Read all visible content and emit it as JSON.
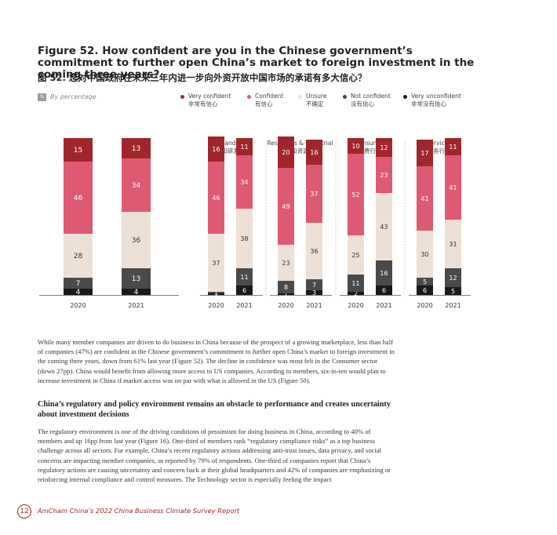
{
  "figure": {
    "title": "Figure 52. How confident are you in the Chinese government’s commitment to further open China’s market to foreign investment in the coming three years?",
    "title_zh": "图 52. 您对中国政府在未来三年内进一步向外资开放中国市场的承诺有多大信心？",
    "percentage_badge": "%",
    "percentage_note": "By percentage"
  },
  "legend": [
    {
      "label": "Very confident",
      "label_zh": "非常有信心",
      "color": "#a0262c"
    },
    {
      "label": "Confident",
      "label_zh": "有信心",
      "color": "#de5a73"
    },
    {
      "label": "Unsure",
      "label_zh": "不确定",
      "color": "#ede0d6"
    },
    {
      "label": "Not confident",
      "label_zh": "没有信心",
      "color": "#4a4a4a"
    },
    {
      "label": "Very unconfident",
      "label_zh": "非常没有信心",
      "color": "#1a1a1a"
    }
  ],
  "chart_data": [
    {
      "type": "bar",
      "stacked": true,
      "title": "",
      "categories": [
        "2020",
        "2021"
      ],
      "series": [
        {
          "name": "Very confident",
          "values": [
            15,
            13
          ]
        },
        {
          "name": "Confident",
          "values": [
            46,
            34
          ]
        },
        {
          "name": "Unsure",
          "values": [
            28,
            36
          ]
        },
        {
          "name": "Not confident",
          "values": [
            7,
            13
          ]
        },
        {
          "name": "Very unconfident",
          "values": [
            4,
            4
          ]
        }
      ]
    },
    {
      "type": "bar",
      "stacked": true,
      "title": "Tech and R&D",
      "title_zh": "技术和研发行业",
      "categories": [
        "2020",
        "2021"
      ],
      "series": [
        {
          "name": "Very confident",
          "values": [
            16,
            11
          ]
        },
        {
          "name": "Confident",
          "values": [
            46,
            34
          ]
        },
        {
          "name": "Unsure",
          "values": [
            37,
            38
          ]
        },
        {
          "name": "Not confident",
          "values": [
            1,
            11
          ]
        },
        {
          "name": "Very unconfident",
          "values": [
            1,
            6
          ]
        }
      ]
    },
    {
      "type": "bar",
      "stacked": true,
      "title": "Resources & Industrial",
      "title_zh": "工业和资源行业",
      "categories": [
        "2020",
        "2021"
      ],
      "series": [
        {
          "name": "Very confident",
          "values": [
            20,
            16
          ]
        },
        {
          "name": "Confident",
          "values": [
            49,
            37
          ]
        },
        {
          "name": "Unsure",
          "values": [
            23,
            36
          ]
        },
        {
          "name": "Not confident",
          "values": [
            8,
            7
          ]
        },
        {
          "name": "Very unconfident",
          "values": [
            1,
            3
          ]
        }
      ]
    },
    {
      "type": "bar",
      "stacked": true,
      "title": "Consumer",
      "title_zh": "消费行业",
      "categories": [
        "2020",
        "2021"
      ],
      "series": [
        {
          "name": "Very confident",
          "values": [
            10,
            12
          ]
        },
        {
          "name": "Confident",
          "values": [
            52,
            23
          ]
        },
        {
          "name": "Unsure",
          "values": [
            25,
            43
          ]
        },
        {
          "name": "Not confident",
          "values": [
            11,
            16
          ]
        },
        {
          "name": "Very unconfident",
          "values": [
            2,
            6
          ]
        }
      ]
    },
    {
      "type": "bar",
      "stacked": true,
      "title": "Services",
      "title_zh": "服务行业",
      "categories": [
        "2020",
        "2021"
      ],
      "series": [
        {
          "name": "Very confident",
          "values": [
            17,
            11
          ]
        },
        {
          "name": "Confident",
          "values": [
            41,
            41
          ]
        },
        {
          "name": "Unsure",
          "values": [
            30,
            31
          ]
        },
        {
          "name": "Not confident",
          "values": [
            5,
            12
          ]
        },
        {
          "name": "Very unconfident",
          "values": [
            6,
            5
          ]
        }
      ]
    }
  ],
  "text": {
    "paragraph1": "While many member companies are driven to do business in China because of the prospect of a growing marketplace, less than half of companies (47%) are confident in the Chinese government’s commitment to further open China’s market to foreign investment in the coming three years, down from 61% last year (Figure 52). The decline in confidence was most felt in the Consumer sector (down 27pp). China would benefit from allowing more access to US companies. According to members, six-in-ten would plan to increase investment in China if market access was on par with what is allowed in the US (Figure 50).",
    "heading": "China’s regulatory and policy environment remains an obstacle to performance and creates uncertainty about investment decisions",
    "paragraph2": "The regulatory environment is one of the driving conditions of pessimism for doing business in China, according to 40% of members and up 16pp from last year (Figure 16). One-third of members rank “regulatory compliance risks” as a top business challenge across all sectors. For example, China’s recent regulatory actions addressing anti-trust issues, data privacy, and social concerns are impacting member companies, as reported by 79% of respondents. One-third of companies report that China’s regulatory actions are causing uncertainty and concern back at their global headquarters and 42% of companies are emphasizing or reinforcing internal compliance and control measures. The Technology sector is especially feeling the impact"
  },
  "footer": {
    "page_number": "12",
    "report": "AmCham China’s 2022 China Business Climate Survey Report"
  }
}
